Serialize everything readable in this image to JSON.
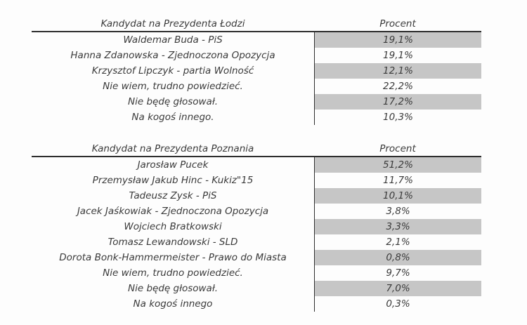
{
  "colors": {
    "background": "#fdfdfd",
    "shaded_cell": "#c6c6c6",
    "text": "#3a3a3a",
    "rule": "#2e2e2e"
  },
  "tables": [
    {
      "title_col": "Kandydat na Prezydenta Łodzi",
      "percent_col": "Procent",
      "rows": [
        {
          "candidate": "Waldemar Buda - PiS",
          "percent": "19,1%",
          "shaded": true
        },
        {
          "candidate": "Hanna Zdanowska - Zjednoczona Opozycja",
          "percent": "19,1%",
          "shaded": false
        },
        {
          "candidate": "Krzysztof Lipczyk - partia Wolność",
          "percent": "12,1%",
          "shaded": true
        },
        {
          "candidate": "Nie wiem, trudno powiedzieć.",
          "percent": "22,2%",
          "shaded": false
        },
        {
          "candidate": "Nie będę głosował.",
          "percent": "17,2%",
          "shaded": true
        },
        {
          "candidate": "Na kogoś innego.",
          "percent": "10,3%",
          "shaded": false
        }
      ]
    },
    {
      "title_col": "Kandydat na Prezydenta Poznania",
      "percent_col": "Procent",
      "rows": [
        {
          "candidate": "Jarosław Pucek",
          "percent": "51,2%",
          "shaded": true
        },
        {
          "candidate": "Przemysław Jakub Hinc - Kukiz\"15",
          "percent": "11,7%",
          "shaded": false
        },
        {
          "candidate": "Tadeusz Zysk - PiS",
          "percent": "10,1%",
          "shaded": true
        },
        {
          "candidate": "Jacek Jaśkowiak - Zjednoczona Opozycja",
          "percent": "3,8%",
          "shaded": false
        },
        {
          "candidate": "Wojciech Bratkowski",
          "percent": "3,3%",
          "shaded": true
        },
        {
          "candidate": "Tomasz Lewandowski - SLD",
          "percent": "2,1%",
          "shaded": false
        },
        {
          "candidate": "Dorota Bonk-Hammermeister - Prawo do Miasta",
          "percent": "0,8%",
          "shaded": true
        },
        {
          "candidate": "Nie wiem, trudno powiedzieć.",
          "percent": "9,7%",
          "shaded": false
        },
        {
          "candidate": "Nie będę głosował.",
          "percent": "7,0%",
          "shaded": true
        },
        {
          "candidate": "Na kogoś innego",
          "percent": "0,3%",
          "shaded": false
        }
      ]
    }
  ]
}
